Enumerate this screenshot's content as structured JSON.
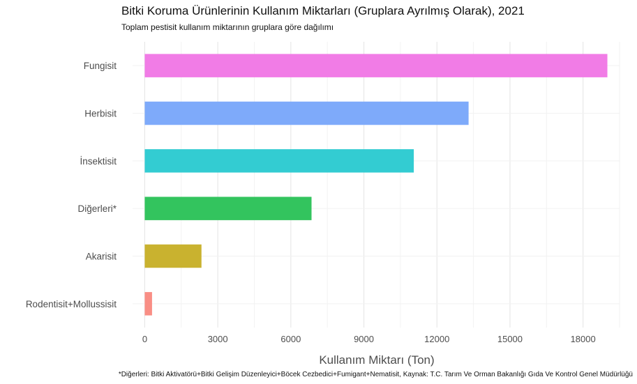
{
  "chart_data": {
    "type": "bar",
    "orientation": "horizontal",
    "title": "Bitki Koruma Ürünlerinin Kullanım Miktarları (Gruplara Ayrılmış Olarak), 2021",
    "subtitle": "Toplam pestisit kullanım miktarının gruplara göre dağılımı",
    "xlabel": "Kullanım Miktarı (Ton)",
    "ylabel": "",
    "caption": "*Diğerleri: Bitki Aktivatörü+Bitki Gelişim Düzenleyici+Böcek Cezbedici+Fumigant+Nematisit, Kaynak: T.C. Tarım Ve Orman Bakanlığı Gıda Ve Kontrol Genel Müdürlüğü",
    "categories": [
      "Fungisit",
      "Herbisit",
      "İnsektisit",
      "Diğerleri*",
      "Akarisit",
      "Rodentisit+Mollussisit"
    ],
    "values": [
      19000,
      13300,
      11050,
      6850,
      2330,
      300
    ],
    "colors": [
      "#F17CE6",
      "#7EAAFA",
      "#33CCD2",
      "#33C45E",
      "#C9B22F",
      "#F98E85"
    ],
    "xlim": [
      -500,
      19500
    ],
    "xticks": [
      0,
      3000,
      6000,
      9000,
      12000,
      15000,
      18000
    ],
    "grid": true,
    "legend": "none"
  }
}
